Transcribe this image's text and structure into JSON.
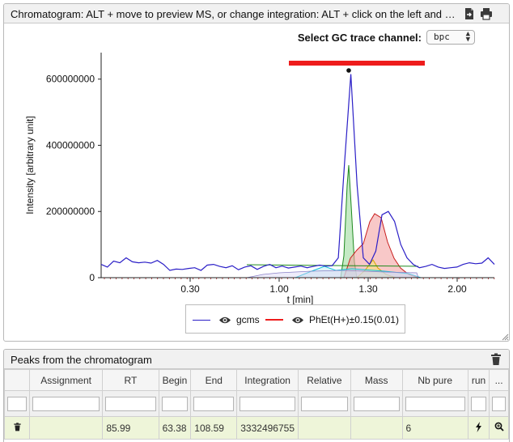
{
  "chromatogram_panel": {
    "title": "Chromatogram: ALT + move to preview MS, or change integration: ALT + click on the left and right side",
    "export_icon": "file-export-icon",
    "print_icon": "print-icon"
  },
  "gc_trace": {
    "label": "Select GC trace channel:",
    "selected": "bpc"
  },
  "chart_data": {
    "type": "line",
    "ylabel": "Intensity [arbitrary unit]",
    "xlabel": "t [min]",
    "x_ticks": [
      "0.30",
      "1.00",
      "1.30",
      "2.00"
    ],
    "y_ticks": [
      "0",
      "200000000",
      "400000000",
      "600000000"
    ],
    "ylim": [
      0,
      680000000
    ],
    "series": [
      {
        "name": "gcms",
        "color": "#2b1fc7",
        "values": [
          40000000,
          32000000,
          50000000,
          45000000,
          60000000,
          48000000,
          45000000,
          47000000,
          44000000,
          52000000,
          40000000,
          22000000,
          26000000,
          25000000,
          28000000,
          30000000,
          22000000,
          38000000,
          40000000,
          34000000,
          30000000,
          36000000,
          24000000,
          32000000,
          36000000,
          25000000,
          34000000,
          40000000,
          30000000,
          35000000,
          29000000,
          32000000,
          35000000,
          30000000,
          34000000,
          38000000,
          35000000,
          36000000,
          60000000,
          350000000,
          615000000,
          280000000,
          60000000,
          40000000,
          80000000,
          190000000,
          200000000,
          170000000,
          100000000,
          60000000,
          40000000,
          30000000,
          34000000,
          40000000,
          32000000,
          28000000,
          30000000,
          32000000,
          40000000,
          45000000,
          42000000,
          44000000,
          60000000,
          40000000
        ]
      },
      {
        "name": "PhEt(H+)±0.15(0.01)",
        "color": "#ee1c1c",
        "values": []
      }
    ],
    "legend_position": "bottom",
    "grid": false
  },
  "peaks_panel": {
    "title": "Peaks from the chromatogram",
    "delete_all_icon": "trash-icon",
    "columns": [
      "",
      "Assignment",
      "RT",
      "Begin",
      "End",
      "Integration",
      "Relative",
      "Mass",
      "Nb pure",
      "run",
      "..."
    ],
    "rows": [
      {
        "assignment": "",
        "rt": "85.99",
        "begin": "63.38",
        "end": "108.59",
        "integration": "3332496755",
        "relative": "",
        "mass": "",
        "nb_pure": "6"
      }
    ]
  }
}
